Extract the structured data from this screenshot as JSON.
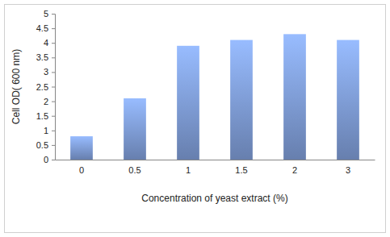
{
  "chart_data": {
    "type": "bar",
    "x_label": "Concentration of yeast extract (%)",
    "y_label": "Cell OD( 600 nm)",
    "categories": [
      "0",
      "0.5",
      "1",
      "1.5",
      "2",
      "3"
    ],
    "values": [
      0.8,
      2.1,
      3.9,
      4.1,
      4.3,
      4.1
    ],
    "color": "#7b98d0",
    "ylim": [
      0,
      5
    ],
    "yticks": [
      0,
      0.5,
      1,
      1.5,
      2,
      2.5,
      3,
      3.5,
      4,
      4.5,
      5
    ],
    "grid": false
  }
}
